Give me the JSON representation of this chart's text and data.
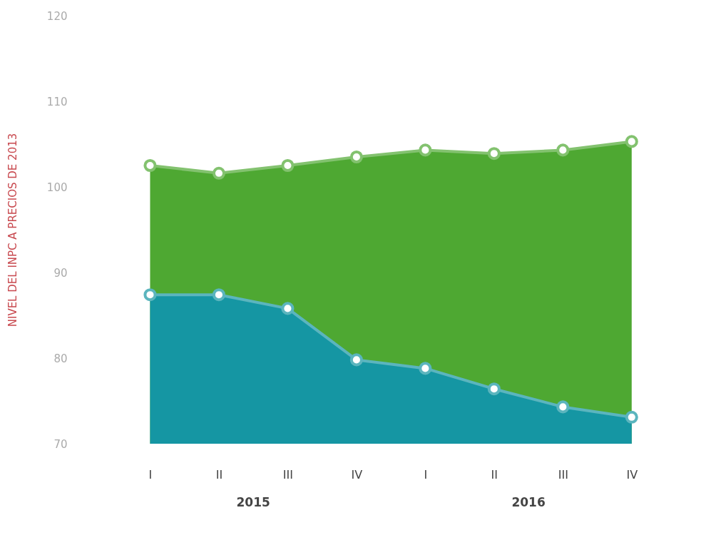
{
  "chart_data": {
    "type": "area",
    "ylabel": "NIVEL DEL INPC A PRECIOS DE 2013",
    "categories": [
      "I",
      "II",
      "III",
      "IV",
      "I",
      "II",
      "III",
      "IV"
    ],
    "series": [
      {
        "color": "#4ea832",
        "values": [
          102.5,
          101.6,
          102.5,
          103.5,
          104.3,
          103.9,
          104.3,
          105.3
        ]
      },
      {
        "color": "#1596a3",
        "values": [
          87.4,
          87.4,
          85.8,
          79.8,
          78.8,
          76.4,
          74.3,
          73.1
        ]
      }
    ],
    "ylim": [
      70,
      120
    ],
    "yticks": [
      70,
      80,
      90,
      100,
      110,
      120
    ],
    "grid": false,
    "legend": false,
    "marker": "circle",
    "annotations": [
      "2015",
      "2016"
    ]
  }
}
